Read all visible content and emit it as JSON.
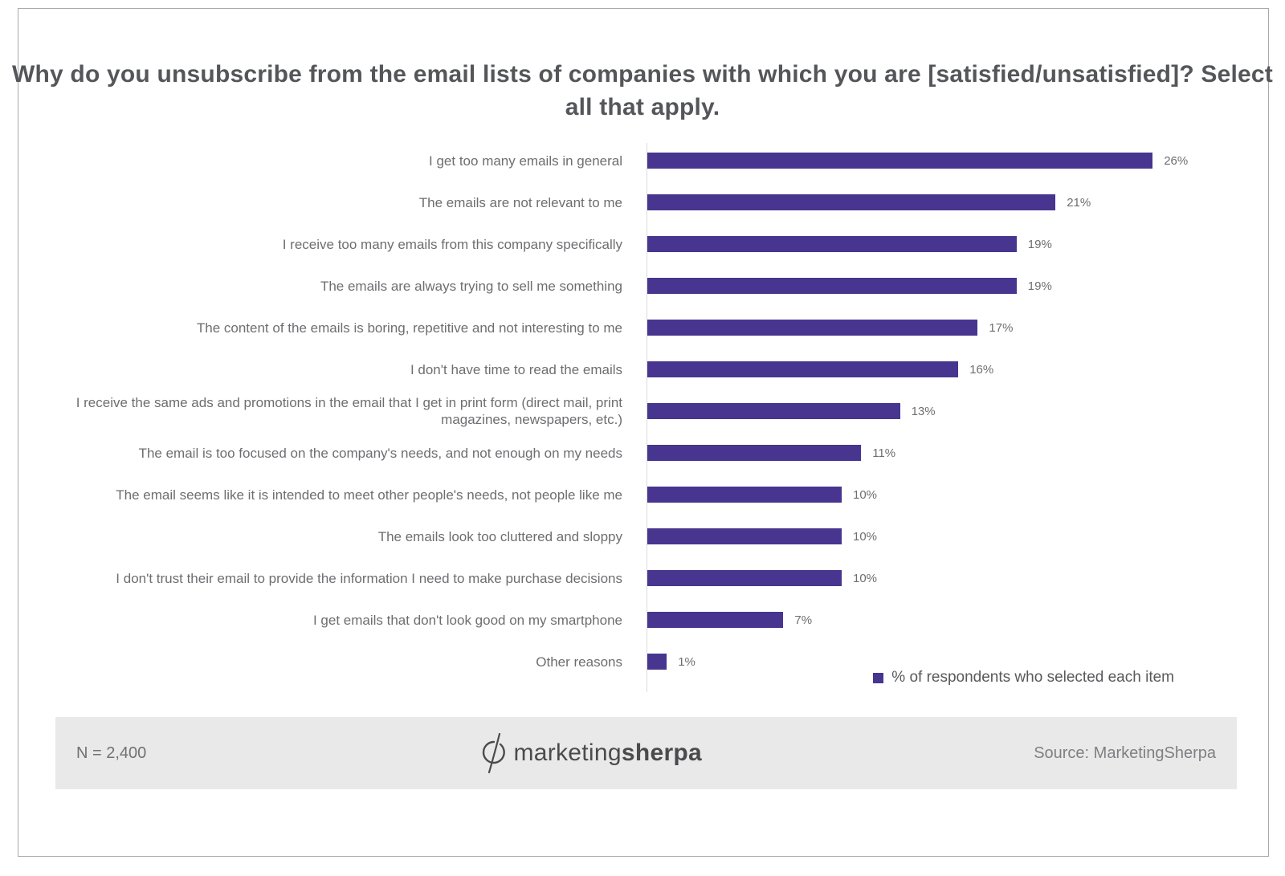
{
  "title": "Why do you unsubscribe from the email lists of companies with which you are [satisfied/unsatisfied]?  Select all that apply.",
  "legend": "% of respondents who selected each item",
  "footer": {
    "n_label": "N = 2,400",
    "source_label": "Source: MarketingSherpa",
    "logo_prefix": "marketing",
    "logo_suffix": "sherpa"
  },
  "colors": {
    "bar": "#473590",
    "title_text": "#54565a",
    "label_text": "#6d6e71",
    "footer_band": "#e9e9e9"
  },
  "chart_data": {
    "type": "bar",
    "orientation": "horizontal",
    "title": "Why do you unsubscribe from the email lists of companies with which you are [satisfied/unsatisfied]? Select all that apply.",
    "legend_entries": [
      "% of respondents who selected each item"
    ],
    "legend_position": "bottom-right",
    "grid": false,
    "xlim": [
      0,
      28
    ],
    "categories": [
      "I get too many emails in general",
      "The emails are not relevant to me",
      "I receive too many emails from this company specifically",
      "The emails are always trying to sell me something",
      "The content of the emails is boring, repetitive and not interesting to me",
      "I don't have time to read the emails",
      "I receive the same ads and promotions in the email that I get in print form (direct mail, print magazines, newspapers, etc.)",
      "The email is too focused on the company's needs, and not enough on my needs",
      "The email seems like it is intended to meet other people's needs, not people like me",
      "The emails look too cluttered and sloppy",
      "I don't trust their email to provide the information I need to make purchase decisions",
      "I get emails that don't look good on my smartphone",
      "Other reasons"
    ],
    "values": [
      26,
      21,
      19,
      19,
      17,
      16,
      13,
      11,
      10,
      10,
      10,
      7,
      1
    ],
    "value_labels": [
      "26%",
      "21%",
      "19%",
      "19%",
      "17%",
      "16%",
      "13%",
      "11%",
      "10%",
      "10%",
      "10%",
      "7%",
      "1%"
    ],
    "sample_size": "N = 2,400",
    "source": "Source: MarketingSherpa"
  }
}
